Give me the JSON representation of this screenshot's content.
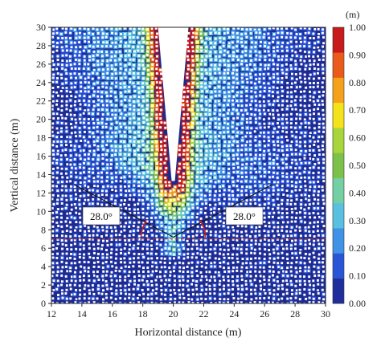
{
  "chart_data": {
    "type": "heatmap",
    "title": "",
    "xlabel": "Horizontal distance (m)",
    "ylabel": "Vertical distance (m)",
    "xlim": [
      12,
      30
    ],
    "ylim": [
      0,
      30
    ],
    "x_ticks": [
      12,
      14,
      16,
      18,
      20,
      22,
      24,
      26,
      28,
      30
    ],
    "y_ticks": [
      0,
      2,
      4,
      6,
      8,
      10,
      12,
      14,
      16,
      18,
      20,
      22,
      24,
      26,
      28,
      30
    ],
    "colorbar": {
      "unit": "(m)",
      "min": 0.0,
      "max": 1.0,
      "tick_values": [
        0.0,
        0.1,
        0.2,
        0.3,
        0.4,
        0.5,
        0.6,
        0.7,
        0.8,
        0.9,
        1.0
      ],
      "tick_labels": [
        "0.00",
        "0.10",
        "0.20",
        "0.30",
        "0.40",
        "0.50",
        "0.60",
        "0.70",
        "0.80",
        "0.90",
        "1.00"
      ],
      "colors": [
        "#1f2e9a",
        "#2a55d6",
        "#3f92e6",
        "#5ac0e0",
        "#74cfa4",
        "#7cc24a",
        "#a8d43c",
        "#f4e21a",
        "#f5a21a",
        "#ea5a1a",
        "#c81a1a"
      ]
    },
    "annotations": [
      {
        "text": "28.0°",
        "side": "left",
        "apex_x": 20.0,
        "apex_y": 7.2,
        "angle_deg": 28.0,
        "line_end_x": 13.5
      },
      {
        "text": "28.0°",
        "side": "right",
        "apex_x": 20.0,
        "apex_y": 7.2,
        "angle_deg": 28.0,
        "line_end_x": 26.5
      }
    ],
    "reference_line": {
      "y": 7.0,
      "style": "dashed",
      "color": "#c0392b"
    },
    "drawdown_cavity": {
      "bottom_y": 13.3,
      "top_y": 30,
      "center_x": 20.0,
      "half_width_top": 1.0
    },
    "grid": false
  }
}
